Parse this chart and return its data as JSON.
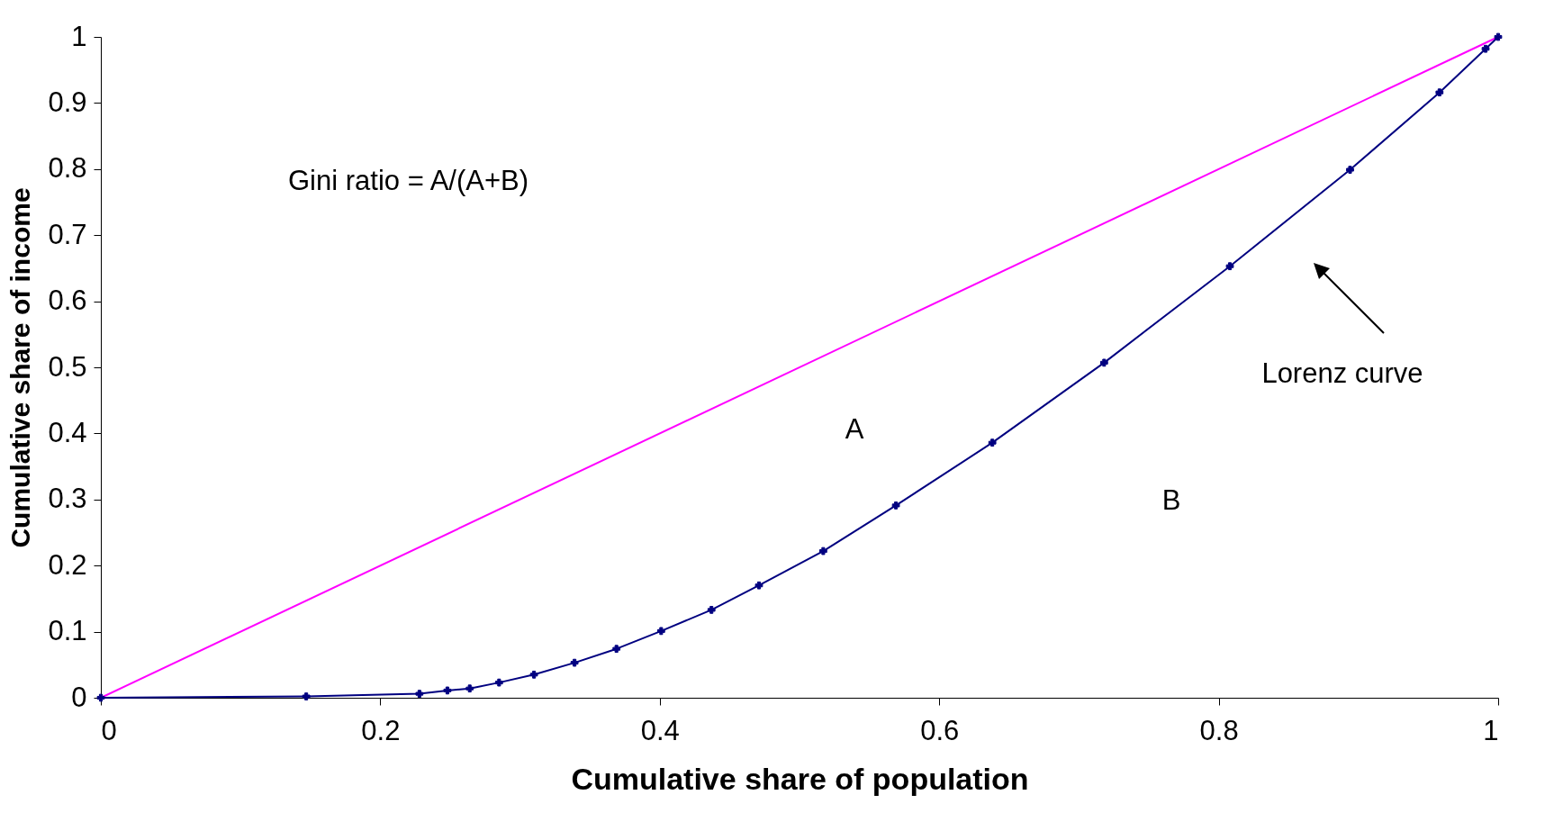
{
  "chart_data": {
    "type": "line",
    "xlabel": "Cumulative share of population",
    "ylabel": "Cumulative share of income",
    "xlim": [
      0,
      1
    ],
    "ylim": [
      0,
      1
    ],
    "xticks": [
      0,
      0.2,
      0.4,
      0.6,
      0.8,
      1
    ],
    "yticks": [
      0,
      0.1,
      0.2,
      0.3,
      0.4,
      0.5,
      0.6,
      0.7,
      0.8,
      0.9,
      1
    ],
    "grid": false,
    "annotations": [
      "Gini ratio = A/(A+B)",
      "A",
      "B",
      "Lorenz curve"
    ],
    "series": [
      {
        "color": "#ff00ff",
        "marker": "none",
        "x": [
          0,
          1
        ],
        "values": [
          0,
          1
        ]
      },
      {
        "color": "#000080",
        "marker": "cross",
        "x": [
          0,
          0.147,
          0.228,
          0.248,
          0.264,
          0.285,
          0.31,
          0.339,
          0.369,
          0.401,
          0.437,
          0.471,
          0.517,
          0.569,
          0.638,
          0.718,
          0.808,
          0.894,
          0.958,
          0.991,
          1
        ],
        "values": [
          0,
          0.002,
          0.006,
          0.011,
          0.014,
          0.023,
          0.035,
          0.053,
          0.074,
          0.101,
          0.133,
          0.17,
          0.222,
          0.291,
          0.386,
          0.507,
          0.653,
          0.799,
          0.916,
          0.982,
          1
        ]
      }
    ]
  }
}
